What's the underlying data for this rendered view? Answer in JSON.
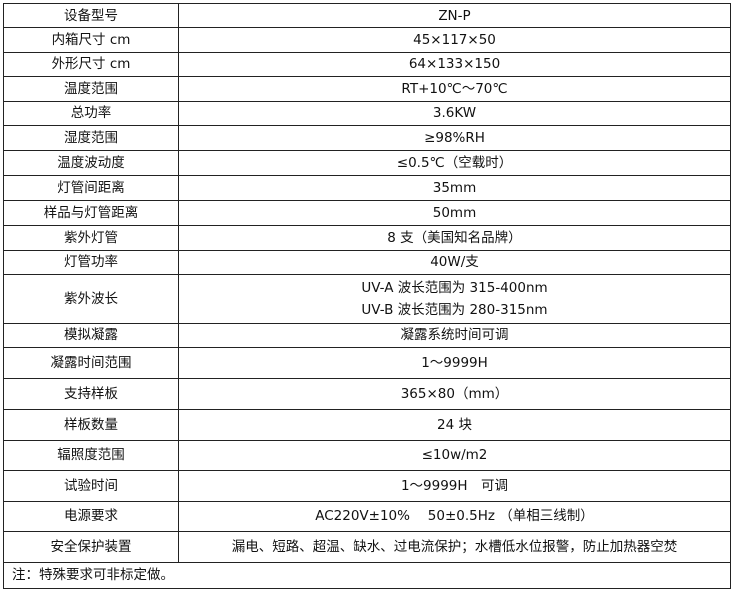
{
  "rows": [
    {
      "label": "设备型号",
      "value": "ZN-P"
    },
    {
      "label": "内箱尺寸 cm",
      "value": "45×117×50"
    },
    {
      "label": "外形尺寸 cm",
      "value": "64×133×150"
    },
    {
      "label": "温度范围",
      "value": "RT+10℃～70℃"
    },
    {
      "label": "总功率",
      "value": "3.6KW"
    },
    {
      "label": "湿度范围",
      "value": "≥98%RH"
    },
    {
      "label": "温度波动度",
      "value": "≤0.5℃（空载时）"
    },
    {
      "label": "灯管间距离",
      "value": "35mm"
    },
    {
      "label": "样品与灯管距离",
      "value": "50mm"
    },
    {
      "label": "紫外灯管",
      "value": "8 支（美国知名品牌）"
    },
    {
      "label": "灯管功率",
      "value": "40W/支"
    },
    {
      "label": "紫外波长",
      "value": "UV-A 波长范围为 315-400nm",
      "value2": "UV-B 波长范围为 280-315nm"
    },
    {
      "label": "模拟凝露",
      "value": "凝露系统时间可调"
    },
    {
      "label": "凝露时间范围",
      "value": "1～9999H"
    },
    {
      "label": "支持样板",
      "value": "365×80（mm）"
    },
    {
      "label": "样板数量",
      "value": "24 块"
    },
    {
      "label": "辐照度范围",
      "value": "≤10w/m2"
    },
    {
      "label": "试验时间",
      "value": "1～9999H　可调"
    },
    {
      "label": "电源要求",
      "value": "AC220V±10%　 50±0.5Hz （单相三线制）"
    },
    {
      "label": "安全保护装置",
      "value": "漏电、短路、超温、缺水、过电流保护；水槽低水位报警，防止加热器空焚"
    }
  ],
  "note": "注：特殊要求可非标定做。"
}
